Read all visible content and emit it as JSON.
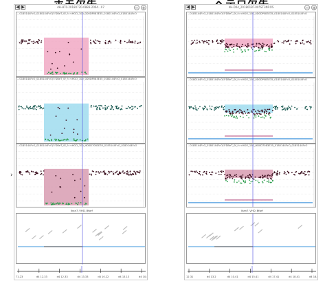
{
  "headings": {
    "left": "ホモ欠失",
    "right": "ヘテロ欠失"
  },
  "colors": {
    "dot_dark": "#3a0f1e",
    "dot_green": "#2e9e4e",
    "dot_teal": "#1d5c54",
    "pink": "#f1a9c4",
    "blue": "#9fdcef",
    "rose": "#d89cb2",
    "cursor": "#4a4adf",
    "bar_blue": "#7fb8e8"
  },
  "left_panel": {
    "title": "dH-HT0·20180720-0883-2064...07",
    "tracks": [
      {
        "label": "...0185144FcO_0180144FcO(5'DBeT_0f_f=<HGO_100_0D0DP083E35_0180144FcO_0180144FcO"
      },
      {
        "label": "...0180144FcO_0185144FcO(5'DBeT_0f_f=<HGO_100_0D0DP083E35_0180144FcO_0185144FcO"
      },
      {
        "label": "...0185144FcO_0180144FcO(5'DBeT_0f_f=<HGO_100_HD0D7083E35_0185144FcO_0180144FcO"
      }
    ],
    "gene_label": "Ikan7_VHD_Bfgrf",
    "ruler_ticks": [
      "71.23",
      "d4 12.33",
      "d4 12.33",
      "d4 13.33",
      "d4 10.22",
      "d4 13.13",
      "d4 10.43"
    ]
  },
  "right_panel": {
    "title": "dH-D04_201801BT-005ST3NP.OS",
    "tracks": [
      {
        "label": "...0185144FcO_0180144FcO(5'DBeT_0f_f=<HGO_100_0D0DP083E35_0180144FcO_0185144FcO"
      },
      {
        "label": "...0180144FcO_0185144FcO(5'DBeT_0f_f=<HGO_100_0D0DP083E35_0185144FcO_0180144FcO"
      },
      {
        "label": "...0185144FcO_0180144FcO(5'DBeT_0f_f=<HGO_100_HD0D7083E35_0180144FcO_0185144FcO"
      }
    ],
    "gene_label": "Ikan7_VHD_Bfgrf",
    "ruler_ticks": [
      "12.31",
      "d4 13.2",
      "d4 10.41",
      "d4 15.41",
      "d4 17.41",
      "d4 18.41",
      "d4 18.41"
    ]
  },
  "nav": {
    "prev": "◀",
    "next": "▶",
    "zoom_out": "−",
    "zoom_in": "+"
  }
}
